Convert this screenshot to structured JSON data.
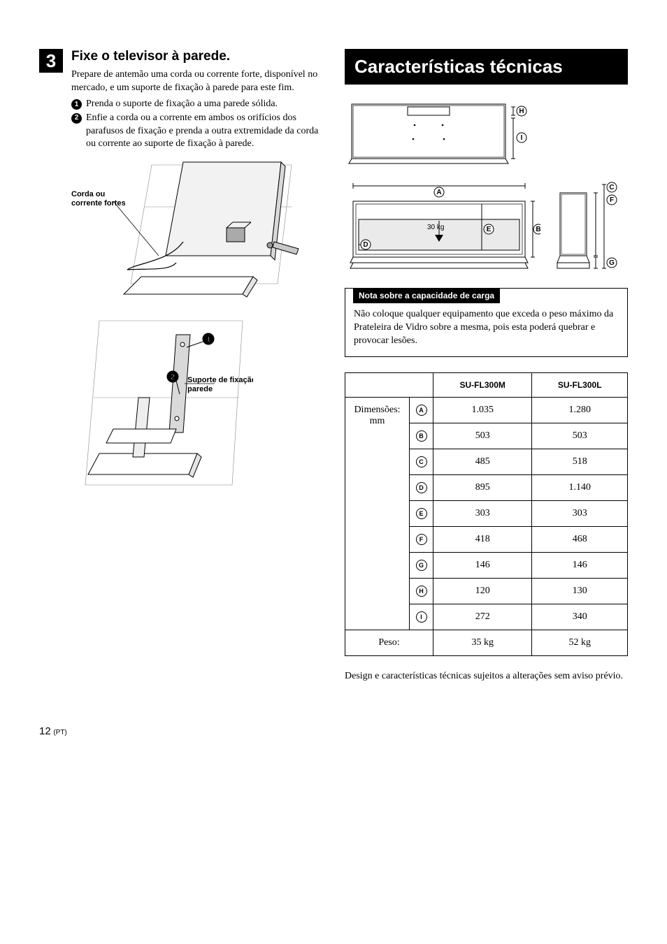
{
  "left": {
    "step_number": "3",
    "step_title": "Fixe o televisor à parede.",
    "step_intro": "Prepare de antemão uma corda ou corrente forte, disponível no mercado, e um suporte de fixação à parede para este fim.",
    "substeps": [
      "Prenda o suporte de fixação a uma parede sólida.",
      "Enfie a corda ou a corrente em ambos os orifícios dos parafusos de fixação e prenda a outra extremidade da corda ou corrente ao suporte de fixação à parede."
    ],
    "fig1_label": "Corda ou corrente fortes",
    "fig2_callout1": "1",
    "fig2_callout2": "2",
    "fig2_label": "Suporte de fixação à parede"
  },
  "right": {
    "section_title": "Características técnicas",
    "diagram": {
      "weight_label": "30 kg",
      "letters": {
        "a": "A",
        "b": "B",
        "c": "C",
        "d": "D",
        "e": "E",
        "f": "F",
        "g": "G",
        "h": "H",
        "i": "I"
      }
    },
    "note_title": "Nota sobre a capacidade de carga",
    "note_body": "Não coloque qualquer equipamento que exceda o peso máximo da Prateleira de Vidro sobre a mesma, pois esta poderá quebrar e provocar lesões.",
    "table": {
      "col_m": "SU-FL300M",
      "col_l": "SU-FL300L",
      "row_dim_label": "Dimensões: mm",
      "row_peso_label": "Peso:",
      "rows": [
        {
          "letter": "A",
          "m": "1.035",
          "l": "1.280"
        },
        {
          "letter": "B",
          "m": "503",
          "l": "503"
        },
        {
          "letter": "C",
          "m": "485",
          "l": "518"
        },
        {
          "letter": "D",
          "m": "895",
          "l": "1.140"
        },
        {
          "letter": "E",
          "m": "303",
          "l": "303"
        },
        {
          "letter": "F",
          "m": "418",
          "l": "468"
        },
        {
          "letter": "G",
          "m": "146",
          "l": "146"
        },
        {
          "letter": "H",
          "m": "120",
          "l": "130"
        },
        {
          "letter": "I",
          "m": "272",
          "l": "340"
        }
      ],
      "peso_m": "35 kg",
      "peso_l": "52 kg"
    },
    "footer": "Design e características técnicas sujeitos a alterações sem aviso prévio."
  },
  "page_number": "12",
  "page_suffix": "(PT)"
}
